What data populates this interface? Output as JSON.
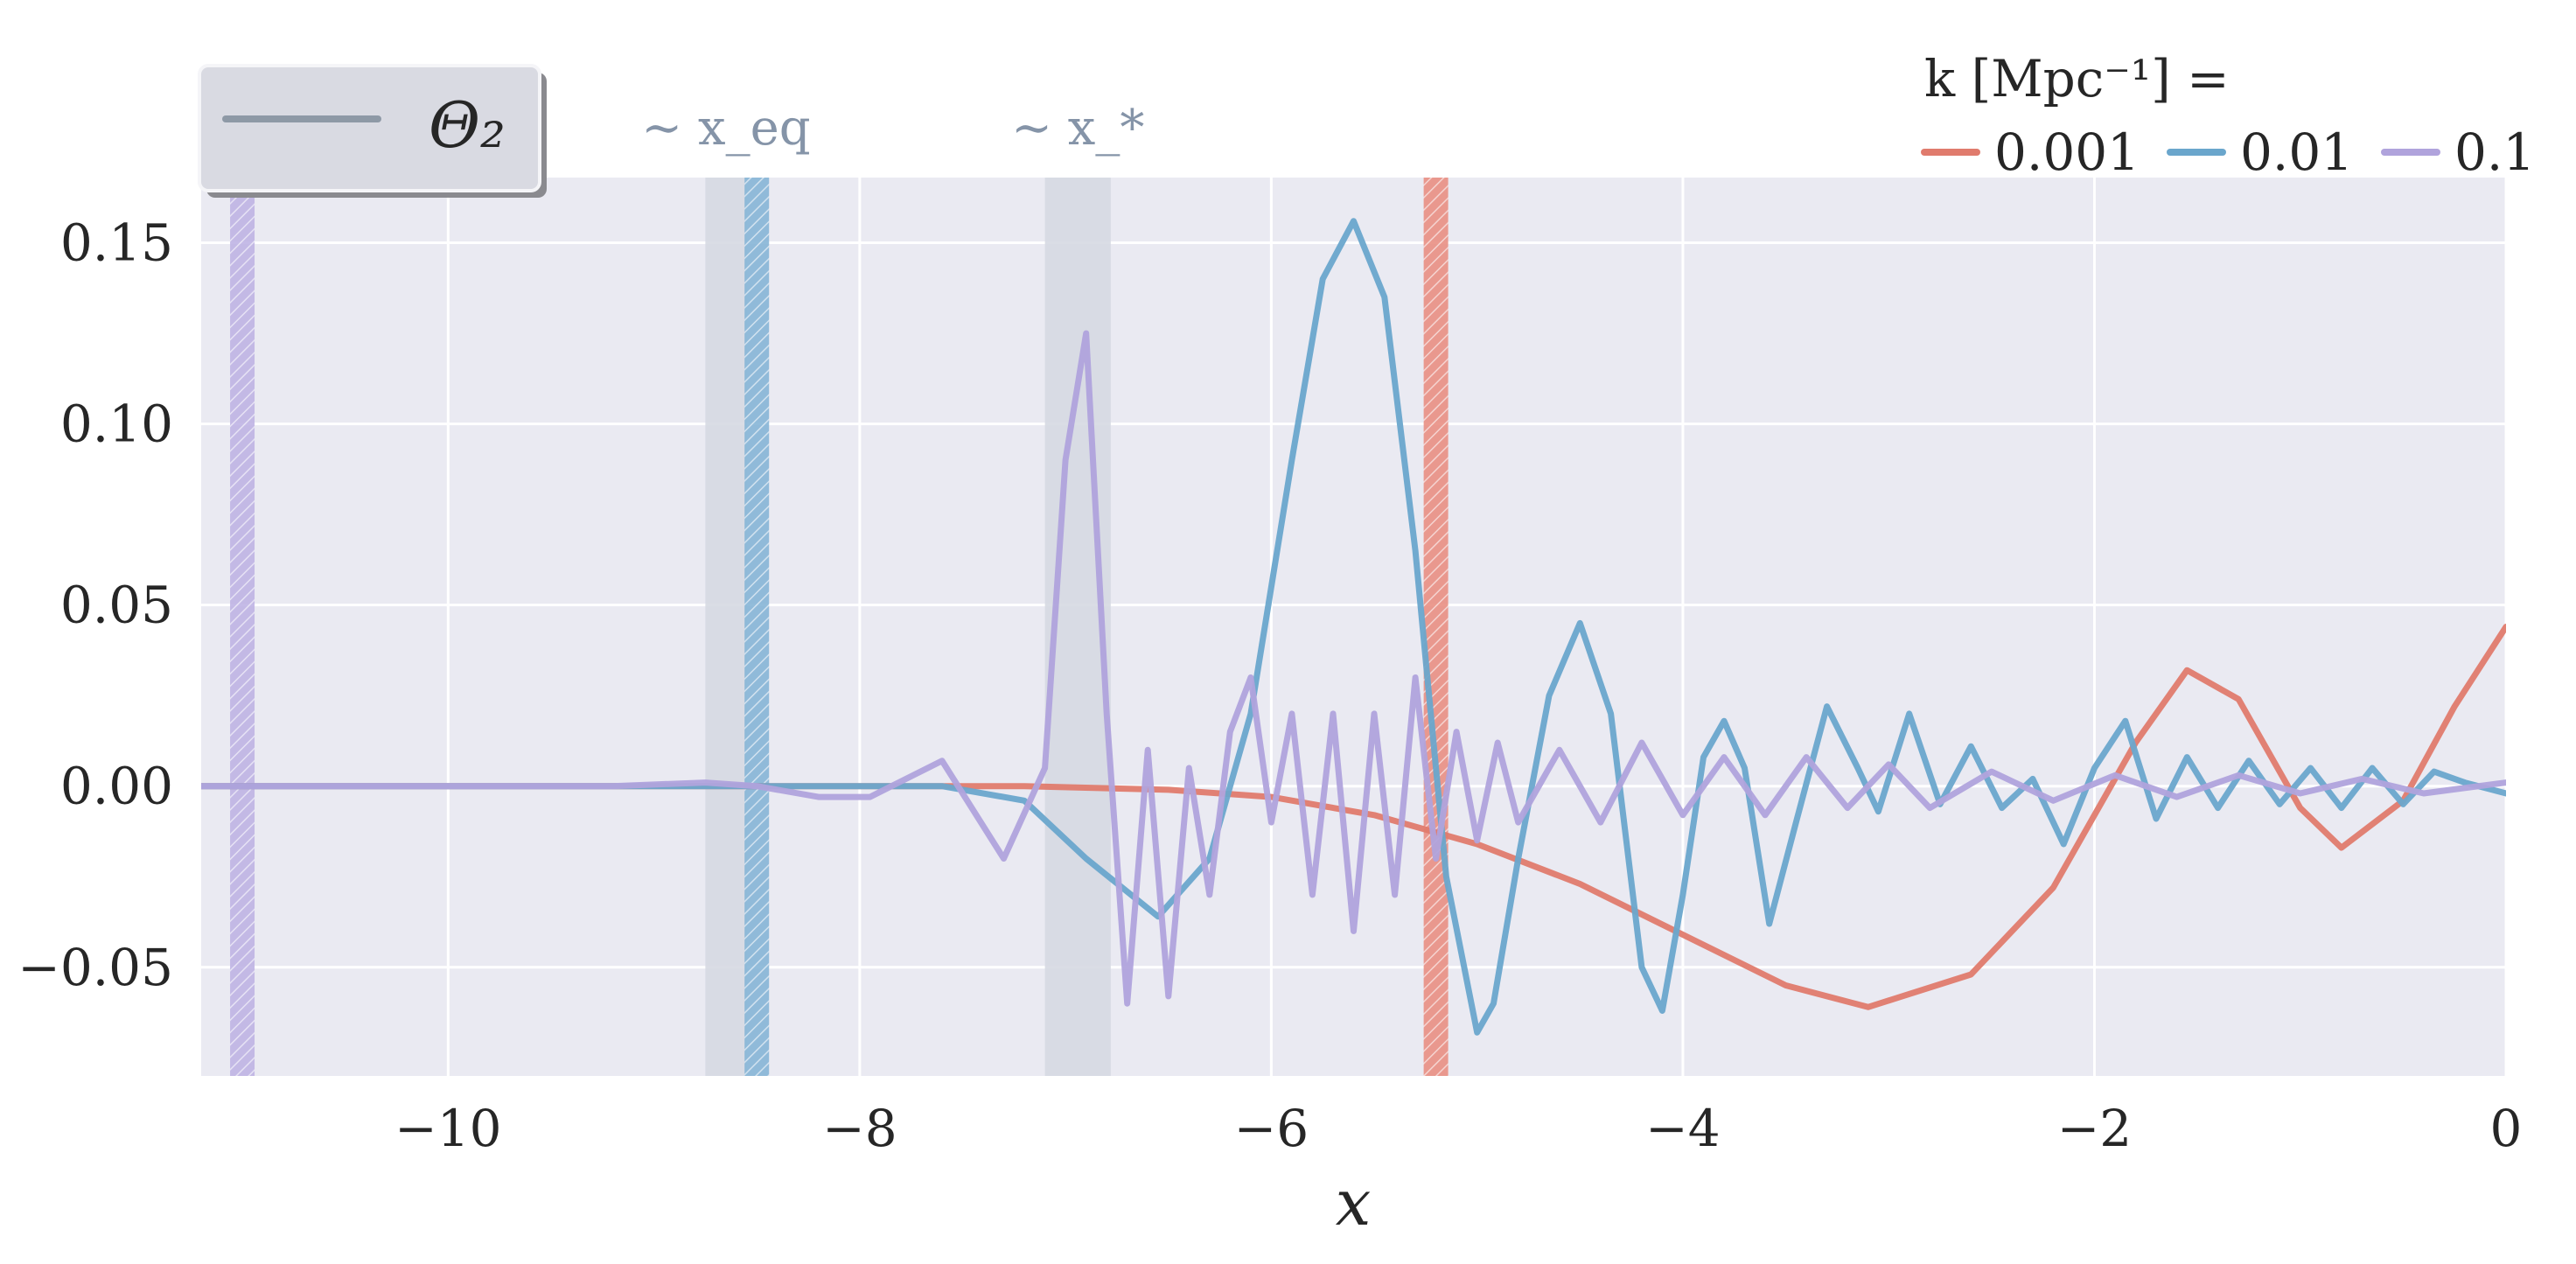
{
  "chart_data": {
    "type": "line",
    "xlabel": "x",
    "ylabel": "",
    "xlim": [
      -11.2,
      0
    ],
    "ylim": [
      -0.08,
      0.168
    ],
    "xticks": [
      -10,
      -8,
      -6,
      -4,
      -2,
      0
    ],
    "xtick_labels": [
      "−10",
      "−8",
      "−6",
      "−4",
      "−2",
      "0"
    ],
    "yticks": [
      -0.05,
      0,
      0.05,
      0.1,
      0.15
    ],
    "ytick_labels": [
      "−0.05",
      "0.00",
      "0.05",
      "0.10",
      "0.15"
    ],
    "grid": true,
    "legend_quantity": {
      "label": "Θ₂",
      "placement": "top-left",
      "color": "#8e99a6"
    },
    "legend_k": {
      "title": "k [Mpc⁻¹] =",
      "placement": "top-right",
      "entries": [
        "0.001",
        "0.01",
        "0.1"
      ]
    },
    "markers": [
      {
        "label": "∼ x_eq",
        "x_from": -8.75,
        "x_to": -8.55
      },
      {
        "label": "∼ x_*",
        "x_from": -7.1,
        "x_to": -6.78
      }
    ],
    "crossing_bands": [
      {
        "series": "0.1",
        "x": -11.0
      },
      {
        "series": "0.01",
        "x": -8.5
      },
      {
        "series": "0.001",
        "x": -5.2
      }
    ],
    "series": [
      {
        "name": "0.001",
        "color": "#e07b6d",
        "x": [
          -11.2,
          -8,
          -7.2,
          -6.5,
          -6,
          -5.5,
          -5,
          -4.5,
          -4,
          -3.5,
          -3.1,
          -2.6,
          -2.2,
          -1.8,
          -1.55,
          -1.3,
          -1.0,
          -0.8,
          -0.5,
          -0.25,
          0
        ],
        "values": [
          0,
          0,
          0,
          -0.001,
          -0.003,
          -0.008,
          -0.016,
          -0.027,
          -0.041,
          -0.055,
          -0.061,
          -0.052,
          -0.028,
          0.012,
          0.032,
          0.024,
          -0.006,
          -0.017,
          -0.004,
          0.022,
          0.044
        ]
      },
      {
        "name": "0.01",
        "color": "#6aa6cc",
        "x": [
          -11.2,
          -8.8,
          -8.2,
          -7.6,
          -7.2,
          -6.9,
          -6.55,
          -6.3,
          -6.1,
          -5.9,
          -5.75,
          -5.6,
          -5.45,
          -5.3,
          -5.15,
          -5.0,
          -4.92,
          -4.8,
          -4.65,
          -4.5,
          -4.35,
          -4.2,
          -4.1,
          -4.0,
          -3.9,
          -3.8,
          -3.7,
          -3.58,
          -3.45,
          -3.3,
          -3.15,
          -3.05,
          -2.9,
          -2.75,
          -2.6,
          -2.45,
          -2.3,
          -2.15,
          -2.0,
          -1.85,
          -1.7,
          -1.55,
          -1.4,
          -1.25,
          -1.1,
          -0.95,
          -0.8,
          -0.65,
          -0.5,
          -0.35,
          -0.2,
          0
        ],
        "values": [
          0,
          0,
          0,
          0,
          -0.004,
          -0.02,
          -0.036,
          -0.02,
          0.02,
          0.09,
          0.14,
          0.156,
          0.135,
          0.065,
          -0.025,
          -0.068,
          -0.06,
          -0.02,
          0.025,
          0.045,
          0.02,
          -0.05,
          -0.062,
          -0.03,
          0.008,
          0.018,
          0.005,
          -0.038,
          -0.01,
          0.022,
          0.005,
          -0.007,
          0.02,
          -0.005,
          0.011,
          -0.006,
          0.002,
          -0.016,
          0.005,
          0.018,
          -0.009,
          0.008,
          -0.006,
          0.007,
          -0.005,
          0.005,
          -0.006,
          0.005,
          -0.005,
          0.004,
          0.001,
          -0.002
        ]
      },
      {
        "name": "0.1",
        "color": "#b0a3dc",
        "x": [
          -11.2,
          -9.2,
          -8.75,
          -8.5,
          -8.2,
          -7.95,
          -7.6,
          -7.3,
          -7.1,
          -7.0,
          -6.9,
          -6.8,
          -6.7,
          -6.6,
          -6.5,
          -6.4,
          -6.3,
          -6.2,
          -6.1,
          -6.0,
          -5.9,
          -5.8,
          -5.7,
          -5.6,
          -5.5,
          -5.4,
          -5.3,
          -5.2,
          -5.1,
          -5.0,
          -4.9,
          -4.8,
          -4.6,
          -4.4,
          -4.2,
          -4.0,
          -3.8,
          -3.6,
          -3.4,
          -3.2,
          -3.0,
          -2.8,
          -2.5,
          -2.2,
          -1.9,
          -1.6,
          -1.3,
          -1.0,
          -0.7,
          -0.4,
          0
        ],
        "values": [
          0,
          0,
          0.001,
          0,
          -0.003,
          -0.003,
          0.007,
          -0.02,
          0.005,
          0.09,
          0.125,
          0.02,
          -0.06,
          0.01,
          -0.058,
          0.005,
          -0.03,
          0.015,
          0.03,
          -0.01,
          0.02,
          -0.03,
          0.02,
          -0.04,
          0.02,
          -0.03,
          0.03,
          -0.02,
          0.015,
          -0.015,
          0.012,
          -0.01,
          0.01,
          -0.01,
          0.012,
          -0.008,
          0.008,
          -0.008,
          0.008,
          -0.006,
          0.006,
          -0.006,
          0.004,
          -0.004,
          0.003,
          -0.003,
          0.003,
          -0.002,
          0.002,
          -0.002,
          0.001
        ]
      }
    ]
  }
}
